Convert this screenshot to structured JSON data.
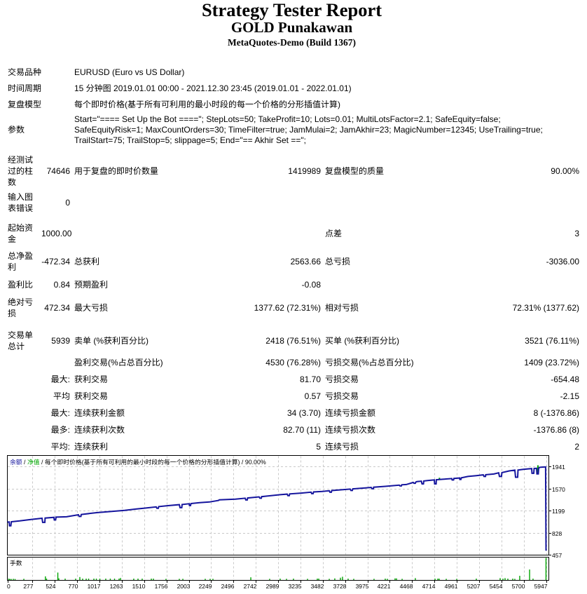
{
  "header": {
    "title": "Strategy Tester Report",
    "expert_name": "GOLD Punakawan",
    "server": "MetaQuotes-Demo (Build 1367)"
  },
  "report": {
    "rows": [
      {
        "wide": true,
        "label": "交易品种",
        "value": "EURUSD (Euro vs US Dollar)"
      },
      {
        "wide": true,
        "label": "时间周期",
        "value": "15 分钟图 2019.01.01 00:00 - 2021.12.30 23:45 (2019.01.01 - 2022.01.01)"
      },
      {
        "wide": true,
        "label": "复盘模型",
        "value": "每个即时价格(基于所有可利用的最小时段的每一个价格的分形插值计算)"
      },
      {
        "wide": true,
        "label": "参数",
        "value_lines": [
          "Start=\"==== Set Up the Bot ====\"; StepLots=50; TakeProfit=10; Lots=0.01; MultiLotsFactor=2.1; SafeEquity=false;",
          "SafeEquityRisk=1; MaxCountOrders=30; TimeFilter=true; JamMulai=2; JamAkhir=23; MagicNumber=12345; UseTrailing=true;",
          "TrailStart=75; TrailStop=5; slippage=5; End=\"== Akhir Set ==\";"
        ]
      },
      {
        "cells": [
          "经测试过的柱数",
          "74646",
          "用于复盘的即时价数量",
          "1419989",
          "复盘模型的质量",
          "90.00%"
        ]
      },
      {
        "cells": [
          "输入图表错误",
          "0",
          "",
          "",
          "",
          ""
        ]
      },
      {
        "cells": [
          "起始资金",
          "1000.00",
          "",
          "",
          "点差",
          "3"
        ]
      },
      {
        "cells": [
          "总净盈利",
          "-472.34",
          "总获利",
          "2563.66",
          "总亏损",
          "-3036.00"
        ]
      },
      {
        "cells": [
          "盈利比",
          "0.84",
          "预期盈利",
          "-0.08",
          "",
          ""
        ]
      },
      {
        "cells": [
          "绝对亏损",
          "472.34",
          "最大亏损",
          "1377.62 (72.31%)",
          "相对亏损",
          "72.31% (1377.62)"
        ]
      },
      {
        "cells": [
          "交易单总计",
          "5939",
          "卖单 (%获利百分比)",
          "2418 (76.51%)",
          "买单 (%获利百分比)",
          "3521 (76.11%)"
        ]
      },
      {
        "cells": [
          "",
          "",
          "盈利交易(%占总百分比)",
          "4530 (76.28%)",
          "亏损交易(%占总百分比)",
          "1409 (23.72%)"
        ]
      },
      {
        "cells": [
          "",
          "最大:",
          "获利交易",
          "81.70",
          "亏损交易",
          "-654.48"
        ]
      },
      {
        "cells": [
          "",
          "平均",
          "获利交易",
          "0.57",
          "亏损交易",
          "-2.15"
        ]
      },
      {
        "cells": [
          "",
          "最大:",
          "连续获利金额",
          "34 (3.70)",
          "连续亏损金额",
          "8 (-1376.86)"
        ]
      },
      {
        "cells": [
          "",
          "最多:",
          "连续获利次数",
          "82.70 (11)",
          "连续亏损次数",
          "-1376.86 (8)"
        ]
      },
      {
        "cells": [
          "",
          "平均:",
          "连续获利",
          "5",
          "连续亏损",
          "2"
        ]
      }
    ]
  },
  "chart_data": {
    "type": "line",
    "legend_parts": [
      "余额",
      " / ",
      "净值",
      " / ",
      "每个即时价格(基于所有可利用的最小时段的每一个价格的分形插值计算)",
      " / ",
      "90.00%"
    ],
    "x_ticks": [
      0,
      277,
      524,
      770,
      1017,
      1263,
      1510,
      1756,
      2003,
      2249,
      2496,
      2742,
      2989,
      3235,
      3482,
      3728,
      3975,
      4221,
      4468,
      4714,
      4961,
      5207,
      5454,
      5700,
      5947
    ],
    "y_ticks": [
      1941,
      1570,
      1199,
      828,
      457
    ],
    "xlabel": "",
    "ylabel": "",
    "xlim": [
      0,
      5975
    ],
    "ylim": [
      457,
      2130
    ],
    "grid": true,
    "series": [
      {
        "name": "余额",
        "type": "line",
        "color": "#15159d",
        "points": [
          [
            0,
            1005
          ],
          [
            19,
            1008
          ],
          [
            23,
            942
          ],
          [
            39,
            942
          ],
          [
            43,
            1011
          ],
          [
            135,
            1025
          ],
          [
            244,
            1046
          ],
          [
            383,
            1069
          ],
          [
            390,
            1000
          ],
          [
            414,
            1000
          ],
          [
            417,
            1073
          ],
          [
            514,
            1085
          ],
          [
            518,
            1041
          ],
          [
            533,
            1041
          ],
          [
            537,
            1088
          ],
          [
            653,
            1094
          ],
          [
            785,
            1128
          ],
          [
            792,
            1100
          ],
          [
            812,
            1100
          ],
          [
            816,
            1133
          ],
          [
            986,
            1164
          ],
          [
            1140,
            1183
          ],
          [
            1295,
            1201
          ],
          [
            1426,
            1225
          ],
          [
            1504,
            1238
          ],
          [
            1643,
            1260
          ],
          [
            1651,
            1237
          ],
          [
            1666,
            1237
          ],
          [
            1670,
            1265
          ],
          [
            1774,
            1281
          ],
          [
            1898,
            1298
          ],
          [
            1906,
            1247
          ],
          [
            1925,
            1247
          ],
          [
            1929,
            1300
          ],
          [
            2006,
            1313
          ],
          [
            2010,
            1283
          ],
          [
            2022,
            1283
          ],
          [
            2026,
            1317
          ],
          [
            2122,
            1332
          ],
          [
            2230,
            1343
          ],
          [
            2331,
            1369
          ],
          [
            2339,
            1379
          ],
          [
            2517,
            1391
          ],
          [
            2625,
            1406
          ],
          [
            2632,
            1377
          ],
          [
            2648,
            1377
          ],
          [
            2652,
            1410
          ],
          [
            2779,
            1429
          ],
          [
            2787,
            1406
          ],
          [
            2803,
            1406
          ],
          [
            2806,
            1432
          ],
          [
            3011,
            1465
          ],
          [
            3089,
            1475
          ],
          [
            3096,
            1449
          ],
          [
            3112,
            1449
          ],
          [
            3116,
            1478
          ],
          [
            3243,
            1492
          ],
          [
            3352,
            1508
          ],
          [
            3359,
            1483
          ],
          [
            3375,
            1483
          ],
          [
            3379,
            1511
          ],
          [
            3475,
            1521
          ],
          [
            3553,
            1531
          ],
          [
            3560,
            1506
          ],
          [
            3576,
            1506
          ],
          [
            3580,
            1535
          ],
          [
            3653,
            1543
          ],
          [
            3784,
            1559
          ],
          [
            3792,
            1536
          ],
          [
            3808,
            1536
          ],
          [
            3812,
            1563
          ],
          [
            3939,
            1577
          ],
          [
            4016,
            1588
          ],
          [
            4024,
            1565
          ],
          [
            4040,
            1565
          ],
          [
            4043,
            1591
          ],
          [
            4171,
            1605
          ],
          [
            4248,
            1616
          ],
          [
            4326,
            1625
          ],
          [
            4333,
            1612
          ],
          [
            4349,
            1612
          ],
          [
            4353,
            1631
          ],
          [
            4403,
            1636
          ],
          [
            4465,
            1664
          ],
          [
            4480,
            1671
          ],
          [
            4488,
            1657
          ],
          [
            4503,
            1657
          ],
          [
            4507,
            1676
          ],
          [
            4519,
            1686
          ],
          [
            4558,
            1690
          ],
          [
            4569,
            1693
          ],
          [
            4577,
            1647
          ],
          [
            4592,
            1647
          ],
          [
            4596,
            1695
          ],
          [
            4635,
            1703
          ],
          [
            4697,
            1711
          ],
          [
            4712,
            1714
          ],
          [
            4716,
            1647
          ],
          [
            4732,
            1647
          ],
          [
            4735,
            1716
          ],
          [
            4805,
            1724
          ],
          [
            4905,
            1736
          ],
          [
            4909,
            1713
          ],
          [
            4925,
            1713
          ],
          [
            4929,
            1739
          ],
          [
            4991,
            1746
          ],
          [
            4994,
            1722
          ],
          [
            5006,
            1722
          ],
          [
            5010,
            1748
          ],
          [
            5083,
            1771
          ],
          [
            5176,
            1786
          ],
          [
            5253,
            1799
          ],
          [
            5261,
            1771
          ],
          [
            5277,
            1771
          ],
          [
            5280,
            1801
          ],
          [
            5369,
            1813
          ],
          [
            5423,
            1833
          ],
          [
            5431,
            1771
          ],
          [
            5454,
            1771
          ],
          [
            5458,
            1836
          ],
          [
            5539,
            1865
          ],
          [
            5601,
            1877
          ],
          [
            5609,
            1759
          ],
          [
            5632,
            1759
          ],
          [
            5636,
            1880
          ],
          [
            5694,
            1892
          ],
          [
            5756,
            1900
          ],
          [
            5787,
            1903
          ],
          [
            5791,
            1824
          ],
          [
            5810,
            1824
          ],
          [
            5814,
            1906
          ],
          [
            5841,
            1908
          ],
          [
            5845,
            1814
          ],
          [
            5860,
            1814
          ],
          [
            5864,
            1912
          ],
          [
            5876,
            1923
          ],
          [
            5887,
            1927
          ],
          [
            5911,
            1929
          ],
          [
            5941,
            1932
          ],
          [
            5945,
            536
          ],
          [
            5953,
            535
          ]
        ]
      },
      {
        "name": "净值",
        "type": "segments",
        "color": "#00a400",
        "segments": [
          [
            4769,
            1724,
            1750
          ],
          [
            5856,
            1812,
            1959
          ]
        ]
      }
    ],
    "bars": {
      "name": "手数",
      "color": "#00a400",
      "points": [
        [
          15,
          0.061
        ],
        [
          27,
          0.045
        ],
        [
          43,
          0.045
        ],
        [
          66,
          0.052
        ],
        [
          85,
          0.045
        ],
        [
          182,
          0.052
        ],
        [
          420,
          0.164
        ],
        [
          433,
          0.061
        ],
        [
          557,
          0.336
        ],
        [
          568,
          0.076
        ],
        [
          638,
          0.061
        ],
        [
          754,
          0.061
        ],
        [
          800,
          0.133
        ],
        [
          831,
          0.061
        ],
        [
          870,
          0.061
        ],
        [
          897,
          0.061
        ],
        [
          955,
          0.061
        ],
        [
          982,
          0.061
        ],
        [
          1021,
          0.061
        ],
        [
          1086,
          0.061
        ],
        [
          1136,
          0.061
        ],
        [
          1183,
          0.061
        ],
        [
          1233,
          0.061
        ],
        [
          1249,
          0.091
        ],
        [
          1395,
          0.061
        ],
        [
          1442,
          0.061
        ],
        [
          1488,
          0.061
        ],
        [
          1589,
          0.061
        ],
        [
          1612,
          0.061
        ],
        [
          1751,
          0.052
        ],
        [
          1898,
          0.052
        ],
        [
          1937,
          0.052
        ],
        [
          2184,
          0.052
        ],
        [
          2238,
          0.052
        ],
        [
          2269,
          0.052
        ],
        [
          2687,
          0.121
        ],
        [
          2895,
          0.052
        ],
        [
          3011,
          0.061
        ],
        [
          3081,
          0.052
        ],
        [
          3158,
          0.061
        ],
        [
          3313,
          0.052
        ],
        [
          3421,
          0.061
        ],
        [
          3437,
          0.061
        ],
        [
          3553,
          0.052
        ],
        [
          3614,
          0.073
        ],
        [
          3676,
          0.103
        ],
        [
          3699,
          0.145
        ],
        [
          3761,
          0.061
        ],
        [
          3823,
          0.052
        ],
        [
          4047,
          0.052
        ],
        [
          4171,
          0.061
        ],
        [
          4194,
          0.052
        ],
        [
          4279,
          0.073
        ],
        [
          4295,
          0.073
        ],
        [
          4357,
          0.052
        ],
        [
          4503,
          0.085
        ],
        [
          4720,
          0.061
        ],
        [
          4751,
          0.061
        ],
        [
          4766,
          0.061
        ],
        [
          4844,
          0.052
        ],
        [
          4960,
          0.052
        ],
        [
          5176,
          0.061
        ],
        [
          5439,
          0.085
        ],
        [
          5470,
          0.061
        ],
        [
          5493,
          0.085
        ],
        [
          5524,
          0.061
        ],
        [
          5578,
          0.061
        ],
        [
          5601,
          0.052
        ],
        [
          5655,
          0.188
        ],
        [
          5764,
          0.473
        ],
        [
          5802,
          0.061
        ],
        [
          5945,
          1.0
        ]
      ]
    }
  },
  "colors": {
    "balance": "#15159d",
    "equity": "#00a400",
    "lots": "#00a400",
    "grid": "#c9c9c9",
    "border": "#000000",
    "text": "#000000",
    "background": "#ffffff"
  }
}
